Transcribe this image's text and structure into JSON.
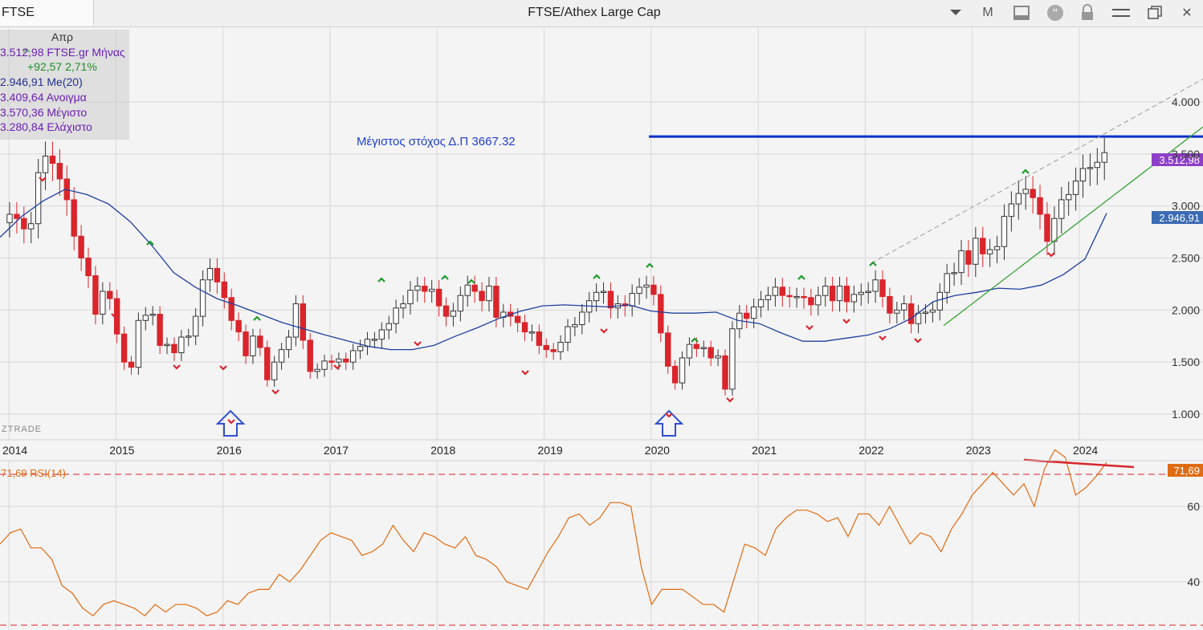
{
  "toolbar": {
    "symbol": "FTSE",
    "title": "FTSE/Athex Large Cap",
    "buttons": [
      {
        "label": "▾",
        "icon": "dropdown-arrow-icon"
      },
      {
        "label": "M",
        "icon": "period-M"
      },
      {
        "label": "",
        "icon": "panel-icon"
      },
      {
        "label": "",
        "icon": "quote-icon"
      },
      {
        "label": "",
        "icon": "lock-icon"
      },
      {
        "label": "",
        "icon": "menu-icon"
      },
      {
        "label": "",
        "icon": "restore-window-icon"
      },
      {
        "label": "✕",
        "icon": "close-icon"
      }
    ]
  },
  "legend": {
    "month": "Απρ",
    "price": "3.512,98 FTSE.gr Μήνας",
    "change": "+92,57 2,71%",
    "ma": "2.946,91 Me(20)",
    "open": "3.409,64 Ανοιγμα",
    "high": "3.570,36 Μέγιστο",
    "low": "3.280,84 Ελάχιστο"
  },
  "annotation": "Μέγιστος στόχος Δ.Π 3667.32",
  "watermark": "ZTRADE",
  "colors": {
    "up": "#ffffff",
    "down": "#d9252b",
    "ma": "#1f3f9f",
    "target": "#0a2fc8",
    "trend": "#2ca02c",
    "rsi": "#e06b12",
    "price_tag": "#8e3fc7",
    "ma_tag": "#3b6bb3"
  },
  "chart_data": [
    {
      "type": "candlestick",
      "title": "FTSE/Athex Large Cap",
      "period": "Monthly",
      "x_labels": [
        "2014",
        "2015",
        "2016",
        "2017",
        "2018",
        "2019",
        "2020",
        "2021",
        "2022",
        "2023",
        "2024"
      ],
      "y_ticks": [
        "1.000",
        "1.500",
        "2.000",
        "2.500",
        "3.000",
        "3.500",
        "4.000"
      ],
      "ylim": [
        900,
        4500
      ],
      "last_price": "3.512,98",
      "ma_label": "2.946,91",
      "target_level": 3667.32,
      "series": [
        {
          "name": "FTSE.gr Μήνας",
          "ohlc_close": [
            2920,
            2880,
            2780,
            2830,
            3320,
            3480,
            3410,
            3260,
            3060,
            2710,
            2500,
            2330,
            1960,
            2180,
            2110,
            1770,
            1500,
            1450,
            1900,
            1950,
            1960,
            1660,
            1670,
            1590,
            1740,
            1750,
            1940,
            2290,
            2400,
            2270,
            2120,
            1900,
            1790,
            1560,
            1750,
            1640,
            1330,
            1500,
            1620,
            1740,
            2060,
            1710,
            1410,
            1430,
            1510,
            1500,
            1530,
            1500,
            1610,
            1650,
            1720,
            1720,
            1810,
            1870,
            2020,
            2060,
            2190,
            2230,
            2180,
            2200,
            2040,
            1940,
            1990,
            2140,
            2240,
            2180,
            2090,
            2230,
            1930,
            1980,
            1940,
            1880,
            1790,
            1790,
            1660,
            1620,
            1600,
            1690,
            1840,
            1860,
            1980,
            2090,
            2170,
            2180,
            2020,
            2060,
            2040,
            2160,
            2220,
            2240,
            2150,
            1780,
            1460,
            1300,
            1540,
            1670,
            1630,
            1640,
            1540,
            1560,
            1240,
            1820,
            1970,
            1920,
            2030,
            2100,
            2140,
            2220,
            2140,
            2130,
            2130,
            2120,
            2050,
            2140,
            2230,
            2090,
            2230,
            2080,
            2150,
            2170,
            2180,
            2290,
            2130,
            1970,
            2000,
            2060,
            1870,
            1970,
            1980,
            2000,
            2170,
            2350,
            2360,
            2570,
            2440,
            2690,
            2540,
            2580,
            2610,
            2900,
            3020,
            3120,
            3160,
            3080,
            2920,
            2660,
            2880,
            3060,
            3110,
            3240,
            3360,
            3370,
            3420,
            3512.98
          ]
        },
        {
          "name": "Me(20)",
          "values": [
            2700,
            2900,
            3050,
            3160,
            3110,
            3020,
            2850,
            2620,
            2360,
            2220,
            2110,
            2040,
            1960,
            1880,
            1820,
            1760,
            1705,
            1650,
            1620,
            1620,
            1660,
            1750,
            1830,
            1920,
            1990,
            2040,
            2050,
            2040,
            2030,
            2050,
            1990,
            1970,
            1970,
            1980,
            1900,
            1870,
            1780,
            1700,
            1700,
            1730,
            1760,
            1820,
            1920,
            2080,
            2140,
            2170,
            2210,
            2200,
            2240,
            2340,
            2490,
            2930
          ]
        }
      ]
    },
    {
      "type": "line",
      "title": "RSI(14)",
      "last_value": "71,69",
      "label": "71,69 RSI(14)",
      "y_ticks": [
        "40",
        "60"
      ],
      "ylim": [
        30,
        80
      ],
      "series": [
        {
          "name": "RSI(14)",
          "values": [
            50,
            53,
            54,
            49,
            49,
            46,
            39,
            37,
            33,
            31,
            34,
            35,
            34,
            33,
            31,
            34,
            32,
            34,
            34,
            33,
            31,
            32,
            35,
            34,
            37,
            38,
            38,
            42,
            40,
            43,
            47,
            51,
            53,
            52,
            51,
            47,
            48,
            50,
            55,
            51,
            48,
            53,
            52,
            50,
            49,
            52,
            47,
            46,
            44,
            40,
            39,
            38,
            43,
            48,
            52,
            57,
            58,
            55,
            57,
            61,
            61,
            60,
            44,
            34,
            38,
            38,
            38,
            36,
            34,
            34,
            32,
            41,
            50,
            49,
            47,
            54,
            57,
            59,
            59,
            58,
            56,
            57,
            52,
            58,
            58,
            55,
            60,
            55,
            50,
            53,
            52,
            48,
            54,
            58,
            63,
            66,
            69,
            66,
            63,
            66,
            60,
            70,
            75,
            73,
            63,
            65,
            68,
            71.69
          ]
        }
      ]
    }
  ]
}
